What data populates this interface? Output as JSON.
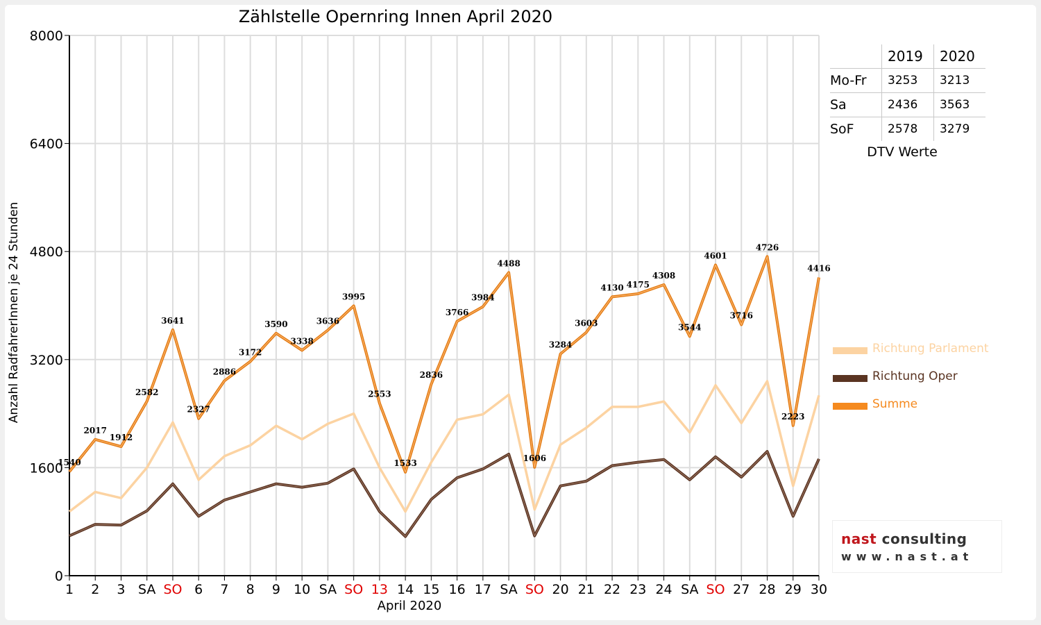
{
  "chart_data": {
    "type": "line",
    "title": "Zählstelle Opernring Innen April 2020",
    "xlabel": "April 2020",
    "ylabel": "Anzahl RadfahrerInnen je 24 Stunden",
    "ylim": [
      0,
      8000
    ],
    "yticks": [
      0,
      1600,
      3200,
      4800,
      6400,
      8000
    ],
    "grid": true,
    "legend_position": "right",
    "categories": [
      "1",
      "2",
      "3",
      "SA",
      "SO",
      "6",
      "7",
      "8",
      "9",
      "10",
      "SA",
      "SO",
      "13",
      "14",
      "15",
      "16",
      "17",
      "SA",
      "SO",
      "20",
      "21",
      "22",
      "23",
      "24",
      "SA",
      "SO",
      "27",
      "28",
      "29",
      "30"
    ],
    "category_colors": [
      "#000000",
      "#000000",
      "#000000",
      "#000000",
      "#e00000",
      "#000000",
      "#000000",
      "#000000",
      "#000000",
      "#000000",
      "#000000",
      "#e00000",
      "#e00000",
      "#000000",
      "#000000",
      "#000000",
      "#000000",
      "#000000",
      "#e00000",
      "#000000",
      "#000000",
      "#000000",
      "#000000",
      "#000000",
      "#000000",
      "#e00000",
      "#000000",
      "#000000",
      "#000000",
      "#000000"
    ],
    "series": [
      {
        "name": "Richtung Parlament",
        "color": "#fcd3a2",
        "values": [
          950,
          1240,
          1150,
          1600,
          2270,
          1420,
          1770,
          1930,
          2220,
          2020,
          2250,
          2400,
          1600,
          950,
          1680,
          2310,
          2390,
          2680,
          980,
          1940,
          2190,
          2500,
          2500,
          2580,
          2120,
          2820,
          2260,
          2880,
          1330,
          2670
        ]
      },
      {
        "name": "Richtung Oper",
        "color": "#5a3422",
        "values": [
          590,
          760,
          750,
          960,
          1360,
          880,
          1120,
          1240,
          1360,
          1310,
          1370,
          1580,
          950,
          580,
          1130,
          1450,
          1580,
          1800,
          590,
          1330,
          1400,
          1630,
          1680,
          1720,
          1420,
          1760,
          1460,
          1840,
          880,
          1730
        ]
      },
      {
        "name": "Summe",
        "color": "#f58a1f",
        "values": [
          1540,
          2017,
          1912,
          2582,
          3641,
          2327,
          2886,
          3172,
          3590,
          3338,
          3636,
          3995,
          2553,
          1533,
          2836,
          3766,
          3984,
          4488,
          1606,
          3284,
          3603,
          4130,
          4175,
          4308,
          3544,
          4601,
          3716,
          4726,
          2223,
          4416
        ]
      }
    ]
  },
  "dtv_table": {
    "headers": [
      "",
      "2019",
      "2020"
    ],
    "rows": [
      {
        "label": "Mo-Fr",
        "v2019": "3253",
        "v2020": "3213"
      },
      {
        "label": "Sa",
        "v2019": "2436",
        "v2020": "3563"
      },
      {
        "label": "SoF",
        "v2019": "2578",
        "v2020": "3279"
      }
    ],
    "caption": "DTV Werte"
  },
  "legend": {
    "items": [
      {
        "label": "Richtung Parlament",
        "color": "#fcd3a2"
      },
      {
        "label": "Richtung Oper",
        "color": "#5a3422"
      },
      {
        "label": "Summe",
        "color": "#f58a1f"
      }
    ]
  },
  "logo": {
    "name_a": "nast",
    "name_b": "consulting",
    "name_a_color": "#c0161c",
    "name_b_color": "#333333",
    "url": "www.nast.at"
  }
}
